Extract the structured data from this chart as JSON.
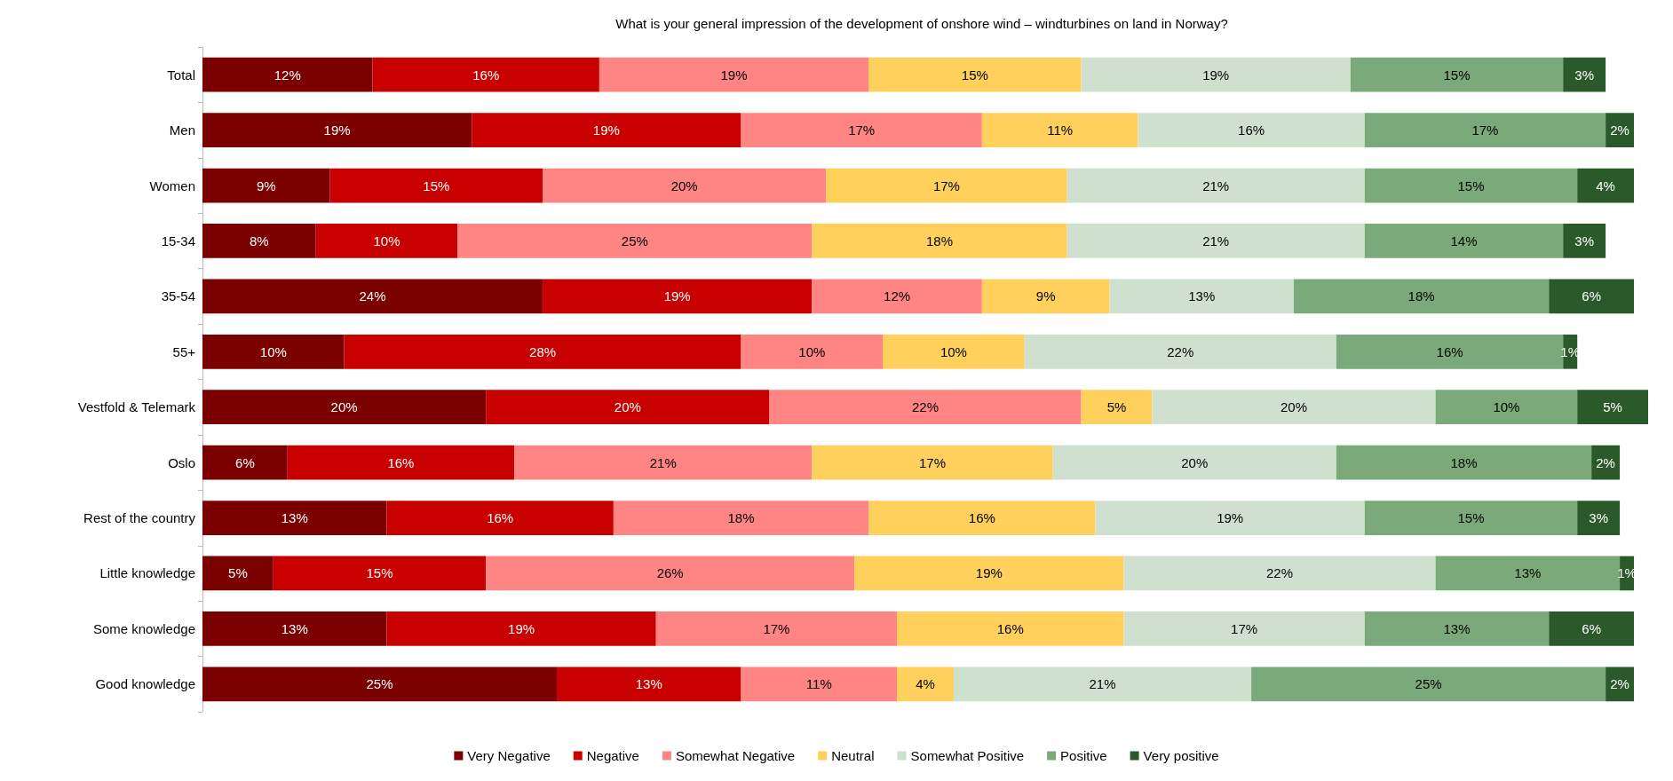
{
  "chart_data": {
    "type": "bar",
    "orientation": "horizontal",
    "stacked": true,
    "title": "What is your general impression of the development of onshore wind – windturbines on land in Norway?",
    "categories": [
      "Total",
      "Men",
      "Women",
      "15-34",
      "35-54",
      "55+",
      "Vestfold & Telemark",
      "Oslo",
      "Rest of the country",
      "Little knowledge",
      "Some knowledge",
      "Good knowledge"
    ],
    "legend": "bottom",
    "tick_labels": "y",
    "series": [
      {
        "name": "Very Negative",
        "color": "#7b0000",
        "values": [
          12,
          19,
          9,
          8,
          24,
          10,
          20,
          6,
          13,
          5,
          13,
          25
        ],
        "value_labels": [
          "12%",
          "19%",
          "9%",
          "8%",
          "24%",
          "10%",
          "20%",
          "6%",
          "13%",
          "5%",
          "13%",
          "25%"
        ]
      },
      {
        "name": "Negative",
        "color": "#c80000",
        "values": [
          16,
          19,
          15,
          10,
          19,
          28,
          20,
          16,
          16,
          15,
          19,
          13
        ],
        "value_labels": [
          "16%",
          "19%",
          "15%",
          "10%",
          "19%",
          "28%",
          "20%",
          "16%",
          "16%",
          "15%",
          "19%",
          "13%"
        ]
      },
      {
        "name": "Somewhat Negative",
        "color": "#ff8585",
        "values": [
          19,
          17,
          20,
          25,
          12,
          10,
          22,
          21,
          18,
          26,
          17,
          11
        ],
        "value_labels": [
          "19%",
          "17%",
          "20%",
          "25%",
          "12%",
          "10%",
          "22%",
          "21%",
          "18%",
          "26%",
          "17%",
          "11%"
        ]
      },
      {
        "name": "Neutral",
        "color": "#ffd05c",
        "values": [
          15,
          11,
          17,
          18,
          9,
          10,
          5,
          17,
          16,
          19,
          16,
          4
        ],
        "value_labels": [
          "15%",
          "11%",
          "17%",
          "18%",
          "9%",
          "10%",
          "5%",
          "17%",
          "16%",
          "19%",
          "16%",
          "4%"
        ]
      },
      {
        "name": "Somewhat Positive",
        "color": "#cfe0cf",
        "values": [
          19,
          16,
          21,
          21,
          13,
          22,
          20,
          20,
          19,
          22,
          17,
          21
        ],
        "value_labels": [
          "19%",
          "16%",
          "21%",
          "21%",
          "13%",
          "22%",
          "20%",
          "20%",
          "19%",
          "22%",
          "17%",
          "21%"
        ]
      },
      {
        "name": "Positive",
        "color": "#7aaa7a",
        "values": [
          15,
          17,
          15,
          14,
          18,
          16,
          10,
          18,
          15,
          13,
          13,
          25
        ],
        "value_labels": [
          "15%",
          "17%",
          "15%",
          "14%",
          "18%",
          "16%",
          "10%",
          "18%",
          "15%",
          "13%",
          "13%",
          "25%"
        ]
      },
      {
        "name": "Very positive",
        "color": "#2a5a2a",
        "values": [
          3,
          2,
          4,
          3,
          6,
          1,
          5,
          2,
          3,
          1,
          6,
          2
        ],
        "value_labels": [
          "3%",
          "2%",
          "4%",
          "3%",
          "6%",
          "1%",
          "5%",
          "2%",
          "3%",
          "1%",
          "6%",
          "2%"
        ]
      }
    ]
  }
}
